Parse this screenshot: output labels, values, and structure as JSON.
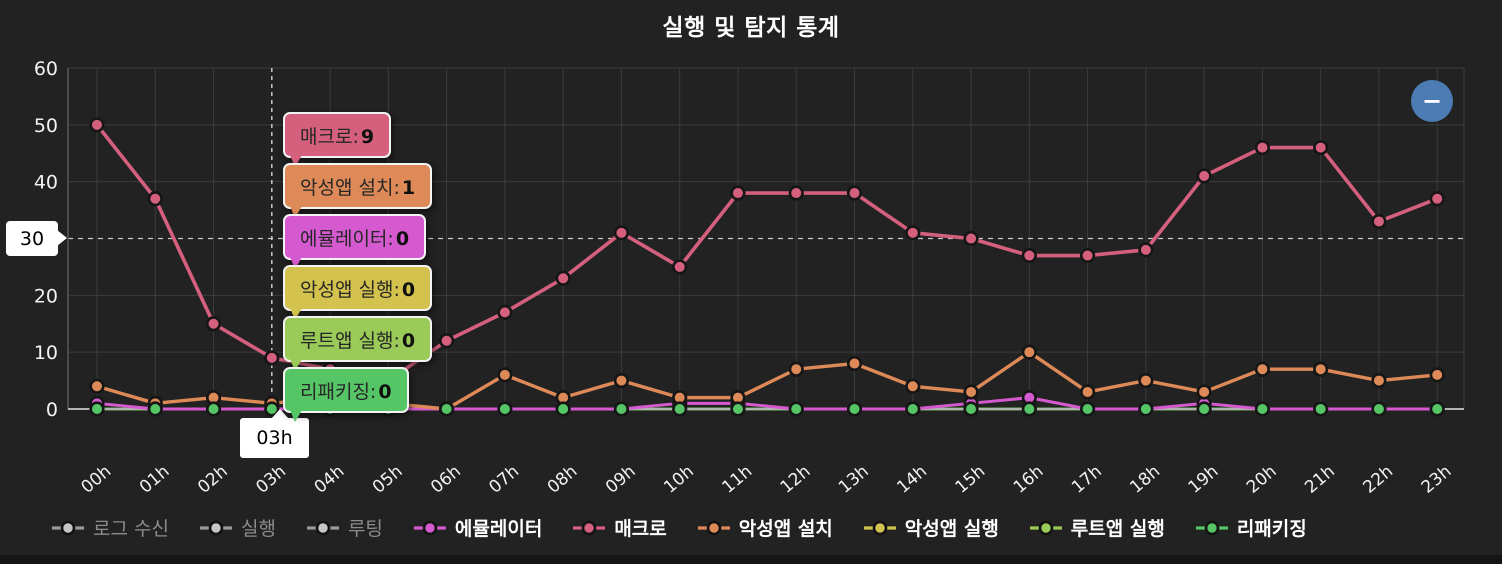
{
  "title": "실행 및 탐지 통계",
  "zoom_button": {
    "label": "−"
  },
  "cursor_labels": {
    "y_value": "30",
    "x_category": "03h"
  },
  "tooltip": {
    "anchor_category": "03h",
    "rows": [
      {
        "key": "macro",
        "label": "매크로",
        "value": "9",
        "color": "#d4607e"
      },
      {
        "key": "malapp-install",
        "label": "악성앱 설치",
        "value": "1",
        "color": "#dd8a58"
      },
      {
        "key": "emulator",
        "label": "에뮬레이터",
        "value": "0",
        "color": "#d55ad0"
      },
      {
        "key": "malapp-exec",
        "label": "악성앱 실행",
        "value": "0",
        "color": "#d3c24d"
      },
      {
        "key": "rootapp-exec",
        "label": "루트앱 실행",
        "value": "0",
        "color": "#9aca57"
      },
      {
        "key": "repackaging",
        "label": "리패키징",
        "value": "0",
        "color": "#55c565"
      }
    ]
  },
  "chart_data": {
    "type": "line",
    "title": "실행 및 탐지 통계",
    "categories": [
      "00h",
      "01h",
      "02h",
      "03h",
      "04h",
      "05h",
      "06h",
      "07h",
      "08h",
      "09h",
      "10h",
      "11h",
      "12h",
      "13h",
      "14h",
      "15h",
      "16h",
      "17h",
      "18h",
      "19h",
      "20h",
      "21h",
      "22h",
      "23h"
    ],
    "ylim": [
      0,
      60
    ],
    "yticks": [
      0,
      10,
      20,
      30,
      40,
      50,
      60
    ],
    "grid": true,
    "legend_position": "bottom",
    "crosshair": {
      "x_category": "03h",
      "y_value": 30
    },
    "series": [
      {
        "key": "log-rx",
        "name": "로그 수신",
        "color": "#c8c8c8",
        "dimmed": true,
        "values": [
          0,
          0,
          0,
          0,
          0,
          0,
          0,
          0,
          0,
          0,
          0,
          0,
          0,
          0,
          0,
          0,
          0,
          0,
          0,
          0,
          0,
          0,
          0,
          0
        ]
      },
      {
        "key": "exec",
        "name": "실행",
        "color": "#c8c8c8",
        "dimmed": true,
        "values": [
          0,
          0,
          0,
          0,
          0,
          0,
          0,
          0,
          0,
          0,
          0,
          0,
          0,
          0,
          0,
          0,
          0,
          0,
          0,
          0,
          0,
          0,
          0,
          0
        ]
      },
      {
        "key": "rooting",
        "name": "루팅",
        "color": "#c8c8c8",
        "dimmed": true,
        "values": [
          0,
          0,
          0,
          0,
          0,
          0,
          0,
          0,
          0,
          0,
          0,
          0,
          0,
          0,
          0,
          0,
          0,
          0,
          0,
          0,
          0,
          0,
          0,
          0
        ]
      },
      {
        "key": "emulator",
        "name": "에뮬레이터",
        "color": "#d55ad0",
        "dimmed": false,
        "values": [
          1,
          0,
          0,
          0,
          0,
          0,
          0,
          0,
          0,
          0,
          1,
          1,
          0,
          0,
          0,
          1,
          2,
          0,
          0,
          1,
          0,
          0,
          0,
          0
        ]
      },
      {
        "key": "macro",
        "name": "매크로",
        "color": "#d4607e",
        "dimmed": false,
        "values": [
          50,
          37,
          15,
          9,
          7,
          5,
          12,
          17,
          23,
          31,
          25,
          38,
          38,
          38,
          31,
          30,
          27,
          27,
          28,
          41,
          46,
          46,
          33,
          37
        ]
      },
      {
        "key": "malapp-install",
        "name": "악성앱 설치",
        "color": "#dd8a58",
        "dimmed": false,
        "values": [
          4,
          1,
          2,
          1,
          2,
          1,
          0,
          6,
          2,
          5,
          2,
          2,
          7,
          8,
          4,
          3,
          10,
          3,
          5,
          3,
          7,
          7,
          5,
          6
        ]
      },
      {
        "key": "malapp-exec",
        "name": "악성앱 실행",
        "color": "#d3c24d",
        "dimmed": false,
        "values": [
          0,
          0,
          0,
          0,
          0,
          0,
          0,
          0,
          0,
          0,
          0,
          0,
          0,
          0,
          0,
          0,
          0,
          0,
          0,
          0,
          0,
          0,
          0,
          0
        ]
      },
      {
        "key": "rootapp-exec",
        "name": "루트앱 실행",
        "color": "#9aca57",
        "dimmed": false,
        "values": [
          0,
          0,
          0,
          0,
          0,
          0,
          0,
          0,
          0,
          0,
          0,
          0,
          0,
          0,
          0,
          0,
          0,
          0,
          0,
          0,
          0,
          0,
          0,
          0
        ]
      },
      {
        "key": "repackaging",
        "name": "리패키징",
        "color": "#55c565",
        "dimmed": false,
        "values": [
          0,
          0,
          0,
          0,
          0,
          0,
          0,
          0,
          0,
          0,
          0,
          0,
          0,
          0,
          0,
          0,
          0,
          0,
          0,
          0,
          0,
          0,
          0,
          0
        ]
      }
    ]
  }
}
